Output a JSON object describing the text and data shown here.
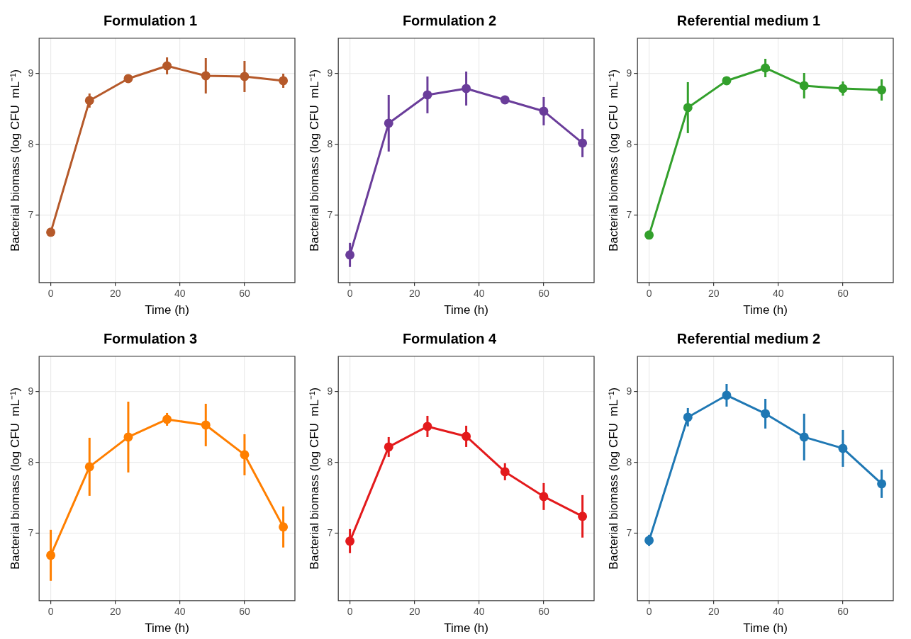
{
  "chart_data": [
    {
      "type": "line",
      "title": "Formulation 1",
      "xlabel": "Time (h)",
      "ylabel": "Bacterial biomass (log CFU  mL⁻¹)",
      "x": [
        0,
        12,
        24,
        36,
        48,
        60,
        72
      ],
      "values": [
        6.76,
        8.62,
        8.93,
        9.11,
        8.97,
        8.96,
        8.9
      ],
      "errors": [
        null,
        0.1,
        0.03,
        0.12,
        0.25,
        0.22,
        0.1
      ],
      "color": "#b5592a",
      "xlim": [
        -3.6,
        75.6
      ],
      "xticks": [
        0,
        20,
        40,
        60
      ],
      "ylim": [
        6.05,
        9.5
      ],
      "yticks": [
        7,
        8,
        9
      ],
      "grid": true,
      "marker": "circle"
    },
    {
      "type": "line",
      "title": "Formulation 2",
      "xlabel": "Time (h)",
      "ylabel": "Bacterial biomass (log CFU  mL⁻¹)",
      "x": [
        0,
        12,
        24,
        36,
        48,
        60,
        72
      ],
      "values": [
        6.44,
        8.3,
        8.7,
        8.79,
        8.63,
        8.47,
        8.02
      ],
      "errors": [
        0.17,
        0.4,
        0.26,
        0.24,
        0.06,
        0.2,
        0.2
      ],
      "color": "#6a3d9a",
      "xlim": [
        -3.6,
        75.6
      ],
      "xticks": [
        0,
        20,
        40,
        60
      ],
      "ylim": [
        6.05,
        9.5
      ],
      "yticks": [
        7,
        8,
        9
      ],
      "grid": true,
      "marker": "circle"
    },
    {
      "type": "line",
      "title": "Referential medium 1",
      "xlabel": "Time (h)",
      "ylabel": "Bacterial biomass (log CFU  mL⁻¹)",
      "x": [
        0,
        12,
        24,
        36,
        48,
        60,
        72
      ],
      "values": [
        6.72,
        8.52,
        8.9,
        9.08,
        8.83,
        8.79,
        8.77
      ],
      "errors": [
        null,
        0.36,
        0.03,
        0.13,
        0.18,
        0.1,
        0.15
      ],
      "color": "#33a02c",
      "xlim": [
        -3.6,
        75.6
      ],
      "xticks": [
        0,
        20,
        40,
        60
      ],
      "ylim": [
        6.05,
        9.5
      ],
      "yticks": [
        7,
        8,
        9
      ],
      "grid": true,
      "marker": "circle"
    },
    {
      "type": "line",
      "title": "Formulation 3",
      "xlabel": "Time (h)",
      "ylabel": "Bacterial biomass (log CFU  mL⁻¹)",
      "x": [
        0,
        12,
        24,
        36,
        48,
        60,
        72
      ],
      "values": [
        6.69,
        7.94,
        8.36,
        8.61,
        8.53,
        8.11,
        7.09
      ],
      "errors": [
        0.36,
        0.41,
        0.5,
        0.09,
        0.3,
        0.29,
        0.29
      ],
      "color": "#ff7f00",
      "xlim": [
        -3.6,
        75.6
      ],
      "xticks": [
        0,
        20,
        40,
        60
      ],
      "ylim": [
        6.05,
        9.5
      ],
      "yticks": [
        7,
        8,
        9
      ],
      "grid": true,
      "marker": "circle"
    },
    {
      "type": "line",
      "title": "Formulation 4",
      "xlabel": "Time (h)",
      "ylabel": "Bacterial biomass (log CFU  mL⁻¹)",
      "x": [
        0,
        12,
        24,
        36,
        48,
        60,
        72
      ],
      "values": [
        6.89,
        8.22,
        8.51,
        8.37,
        7.87,
        7.52,
        7.24
      ],
      "errors": [
        0.17,
        0.14,
        0.15,
        0.15,
        0.12,
        0.19,
        0.3
      ],
      "color": "#e31a1c",
      "xlim": [
        -3.6,
        75.6
      ],
      "xticks": [
        0,
        20,
        40,
        60
      ],
      "ylim": [
        6.05,
        9.5
      ],
      "yticks": [
        7,
        8,
        9
      ],
      "grid": true,
      "marker": "circle"
    },
    {
      "type": "line",
      "title": "Referential medium 2",
      "xlabel": "Time (h)",
      "ylabel": "Bacterial biomass (log CFU  mL⁻¹)",
      "x": [
        0,
        12,
        24,
        36,
        48,
        60,
        72
      ],
      "values": [
        6.9,
        8.64,
        8.95,
        8.69,
        8.36,
        8.2,
        7.7
      ],
      "errors": [
        0.08,
        0.13,
        0.16,
        0.21,
        0.33,
        0.26,
        0.2
      ],
      "color": "#1f78b4",
      "xlim": [
        -3.6,
        75.6
      ],
      "xticks": [
        0,
        20,
        40,
        60
      ],
      "ylim": [
        6.05,
        9.5
      ],
      "yticks": [
        7,
        8,
        9
      ],
      "grid": true,
      "marker": "circle"
    }
  ]
}
